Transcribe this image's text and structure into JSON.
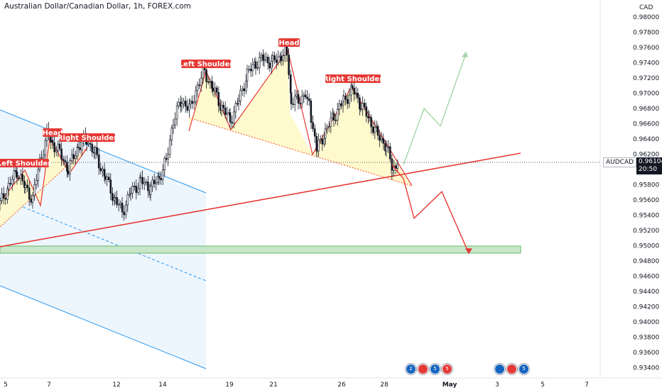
{
  "header": {
    "title": "Australian Dollar/Canadian Dollar, 1h, FOREX.com",
    "currency": "CAD"
  },
  "price_marker": {
    "symbol": "AUDCAD",
    "last_price": "0.96104",
    "countdown": "20:50"
  },
  "price_axis": {
    "ticks": [
      "0.98000",
      "0.97800",
      "0.97600",
      "0.97400",
      "0.97200",
      "0.97000",
      "0.96800",
      "0.96600",
      "0.96400",
      "0.96200",
      "0.95800",
      "0.95600",
      "0.95400",
      "0.95200",
      "0.95000",
      "0.94800",
      "0.94600",
      "0.94400",
      "0.94200",
      "0.94000",
      "0.93800",
      "0.93600",
      "0.93400"
    ]
  },
  "time_axis": {
    "ticks": [
      "5",
      "7",
      "12",
      "14",
      "19",
      "21",
      "26",
      "28",
      "May",
      "3",
      "5",
      "7"
    ]
  },
  "pattern_labels": [
    {
      "text": "Left Shoulder"
    },
    {
      "text": "Head"
    },
    {
      "text": "Right Shoulder"
    },
    {
      "text": "Left Shoulder"
    },
    {
      "text": "Head"
    },
    {
      "text": "Right Shoulder"
    }
  ],
  "event_badges": {
    "group_a": [
      "2",
      "5",
      "5"
    ],
    "group_b": [
      "5"
    ]
  },
  "colors": {
    "up_candle": "#131722",
    "pattern_red": "#e53935",
    "shoulder_fill": "#fff8c9",
    "channel_blue": "#2196f3",
    "channel_fill": "#e8f3fc",
    "support_zone": "#c8e6c9",
    "projection_green": "#a5d6a7",
    "badge_red": "#e53935",
    "price_box": "#131722"
  },
  "chart_data": {
    "type": "candlestick",
    "instrument": "AUDCAD",
    "timeframe": "1h",
    "ylim": [
      0.933,
      0.982
    ],
    "close_path": [
      {
        "t": 0,
        "y": 0.9555
      },
      {
        "t": 12,
        "y": 0.9578
      },
      {
        "t": 24,
        "y": 0.9598
      },
      {
        "t": 36,
        "y": 0.9575
      },
      {
        "t": 46,
        "y": 0.9562
      },
      {
        "t": 56,
        "y": 0.961
      },
      {
        "t": 66,
        "y": 0.9645
      },
      {
        "t": 74,
        "y": 0.9635
      },
      {
        "t": 84,
        "y": 0.9622
      },
      {
        "t": 96,
        "y": 0.96
      },
      {
        "t": 110,
        "y": 0.963
      },
      {
        "t": 122,
        "y": 0.964
      },
      {
        "t": 134,
        "y": 0.962
      },
      {
        "t": 148,
        "y": 0.959
      },
      {
        "t": 162,
        "y": 0.956
      },
      {
        "t": 172,
        "y": 0.9545
      },
      {
        "t": 184,
        "y": 0.957
      },
      {
        "t": 198,
        "y": 0.9585
      },
      {
        "t": 212,
        "y": 0.9575
      },
      {
        "t": 224,
        "y": 0.959
      },
      {
        "t": 234,
        "y": 0.961
      },
      {
        "t": 244,
        "y": 0.9665
      },
      {
        "t": 256,
        "y": 0.969
      },
      {
        "t": 268,
        "y": 0.968
      },
      {
        "t": 278,
        "y": 0.971
      },
      {
        "t": 288,
        "y": 0.9728
      },
      {
        "t": 300,
        "y": 0.9705
      },
      {
        "t": 312,
        "y": 0.9682
      },
      {
        "t": 324,
        "y": 0.9665
      },
      {
        "t": 336,
        "y": 0.969
      },
      {
        "t": 348,
        "y": 0.9725
      },
      {
        "t": 360,
        "y": 0.974
      },
      {
        "t": 372,
        "y": 0.9745
      },
      {
        "t": 384,
        "y": 0.974
      },
      {
        "t": 396,
        "y": 0.975
      },
      {
        "t": 404,
        "y": 0.9755
      },
      {
        "t": 410,
        "y": 0.969
      },
      {
        "t": 420,
        "y": 0.969
      },
      {
        "t": 430,
        "y": 0.97
      },
      {
        "t": 438,
        "y": 0.967
      },
      {
        "t": 446,
        "y": 0.9625
      },
      {
        "t": 458,
        "y": 0.965
      },
      {
        "t": 470,
        "y": 0.967
      },
      {
        "t": 484,
        "y": 0.969
      },
      {
        "t": 496,
        "y": 0.9705
      },
      {
        "t": 508,
        "y": 0.9685
      },
      {
        "t": 520,
        "y": 0.9665
      },
      {
        "t": 532,
        "y": 0.9645
      },
      {
        "t": 544,
        "y": 0.963
      },
      {
        "t": 552,
        "y": 0.96
      },
      {
        "t": 560,
        "y": 0.961
      }
    ],
    "annotations": {
      "support_zone": [
        0.9496,
        0.95
      ],
      "forecast_down": [
        0.9606,
        0.9588,
        0.9536,
        0.9571,
        0.949
      ],
      "forecast_up": [
        0.9606,
        0.968,
        0.9657,
        0.9752
      ]
    }
  }
}
